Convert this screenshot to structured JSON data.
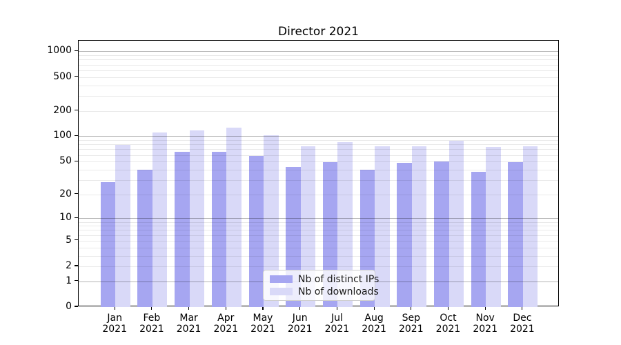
{
  "title": "Director 2021",
  "chart_data": {
    "type": "bar",
    "title": "Director 2021",
    "categories": [
      "Jan 2021",
      "Feb 2021",
      "Mar 2021",
      "Apr 2021",
      "May 2021",
      "Jun 2021",
      "Jul 2021",
      "Aug 2021",
      "Sep 2021",
      "Oct 2021",
      "Nov 2021",
      "Dec 2021"
    ],
    "series": [
      {
        "name": "Nb of distinct IPs",
        "color": "#a6a6f1",
        "values": [
          28,
          40,
          65,
          65,
          58,
          43,
          49,
          40,
          48,
          50,
          38,
          49
        ]
      },
      {
        "name": "Nb of downloads",
        "color": "#d9d9f8",
        "values": [
          79,
          110,
          118,
          127,
          102,
          76,
          85,
          76,
          76,
          88,
          74,
          76
        ]
      }
    ],
    "xlabel": "",
    "ylabel": "",
    "yscale": "log1p",
    "y_tick_values": [
      1000,
      500,
      200,
      100,
      50,
      20,
      10,
      5,
      2,
      1,
      0
    ],
    "y_minor_gridlines": [
      2,
      3,
      4,
      5,
      6,
      7,
      8,
      9,
      20,
      30,
      40,
      50,
      60,
      70,
      80,
      90,
      200,
      300,
      400,
      500,
      600,
      700,
      800,
      900
    ],
    "y_major_gridlines": [
      1,
      10,
      100,
      1000
    ],
    "ylim": [
      0,
      1300
    ],
    "grid": true,
    "legend_position": "lower center",
    "colors": {
      "bar_distinct_ips": "#a6a6f1",
      "bar_downloads": "#d9d9f8",
      "grid_major": "#b3b3b3",
      "grid_minor": "#e8e8e8",
      "axis": "#000000",
      "background": "#ffffff"
    }
  }
}
